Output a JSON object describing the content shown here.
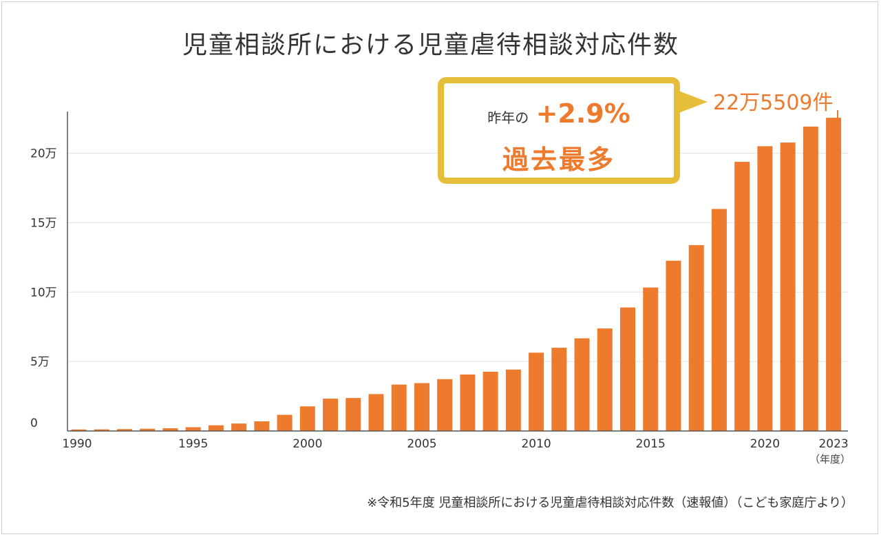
{
  "title": "児童相談所における児童虐待相談対応件数",
  "footnote": "※令和5年度 児童相談所における児童虐待相談対応件数（速報値）（こども家庭庁より）",
  "callout": {
    "prefix": "昨年の",
    "change": "+2.9%",
    "headline": "過去最多"
  },
  "latest_label": "22万5509件",
  "x_unit_label": "（年度）",
  "colors": {
    "bar": "#ee7a2e",
    "callout_border": "#e6bf3a",
    "grid": "#e3e3e3",
    "axis": "#555555"
  },
  "chart_data": {
    "type": "bar",
    "title": "児童相談所における児童虐待相談対応件数",
    "xlabel": "（年度）",
    "ylabel": "",
    "ylim": [
      0,
      230000
    ],
    "yticks": [
      0,
      50000,
      100000,
      150000,
      200000
    ],
    "ytick_labels": [
      "0",
      "5万",
      "10万",
      "15万",
      "20万"
    ],
    "xtick_labels": [
      "1990",
      "1995",
      "2000",
      "2005",
      "2010",
      "2015",
      "2020",
      "2023"
    ],
    "grid": true,
    "categories": [
      "1990",
      "1991",
      "1992",
      "1993",
      "1994",
      "1995",
      "1996",
      "1997",
      "1998",
      "1999",
      "2000",
      "2001",
      "2002",
      "2003",
      "2004",
      "2005",
      "2006",
      "2007",
      "2008",
      "2009",
      "2010",
      "2011",
      "2012",
      "2013",
      "2014",
      "2015",
      "2016",
      "2017",
      "2018",
      "2019",
      "2020",
      "2021",
      "2022",
      "2023"
    ],
    "values": [
      1101,
      1171,
      1372,
      1611,
      1961,
      2722,
      4102,
      5352,
      6932,
      11631,
      17725,
      23274,
      23738,
      26569,
      33408,
      34472,
      37323,
      40639,
      42664,
      44211,
      56384,
      59919,
      66701,
      73802,
      88931,
      103286,
      122575,
      133778,
      159838,
      193780,
      205044,
      207660,
      219170,
      225509
    ]
  }
}
